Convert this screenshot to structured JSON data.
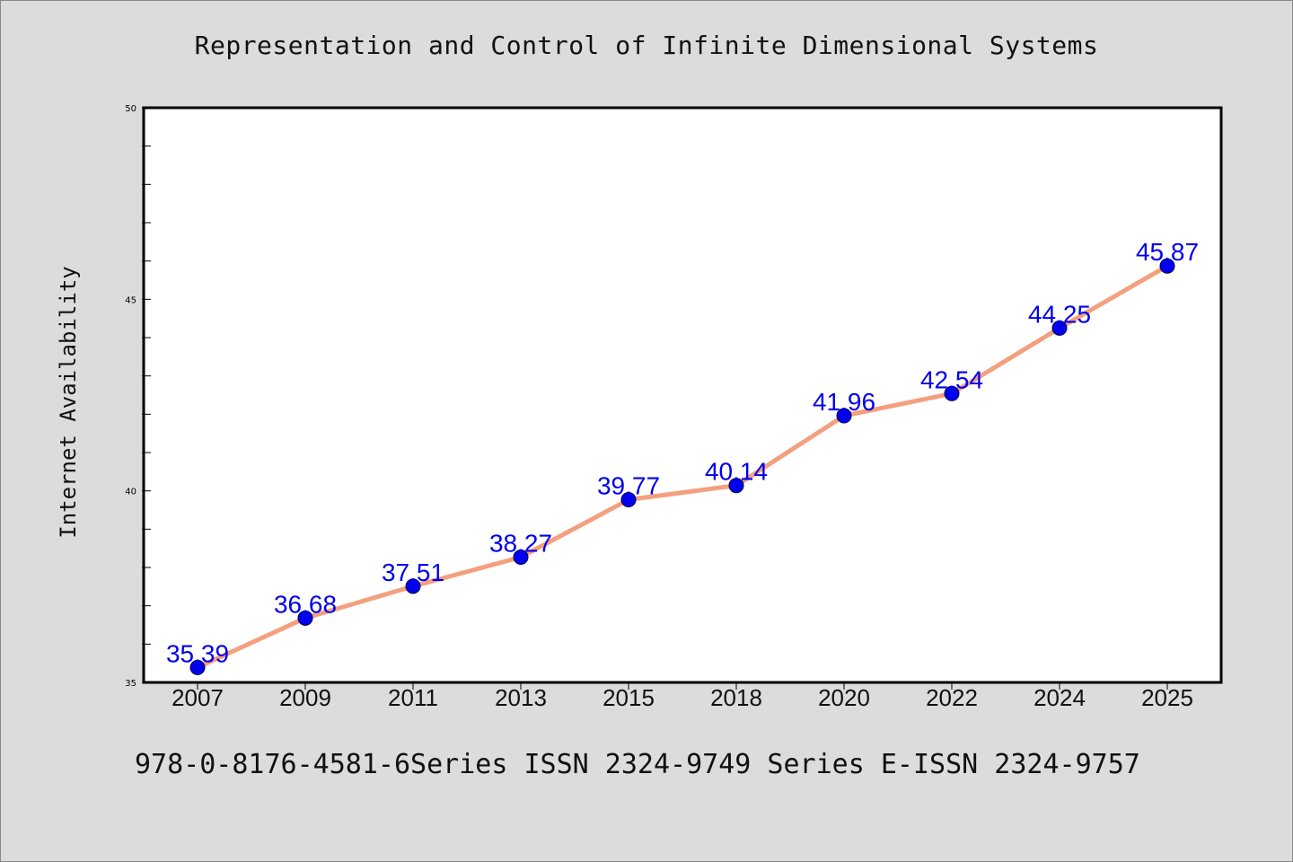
{
  "chart_data": {
    "type": "line",
    "title": "Representation and Control of Infinite Dimensional Systems",
    "footer": "978-0-8176-4581-6Series ISSN 2324-9749 Series E-ISSN 2324-9757",
    "xlabel": "",
    "ylabel": "Internet Availability",
    "categories": [
      "2007",
      "2009",
      "2011",
      "2013",
      "2015",
      "2018",
      "2020",
      "2022",
      "2024",
      "2025"
    ],
    "values": [
      35.39,
      36.68,
      37.51,
      38.27,
      39.77,
      40.14,
      41.96,
      42.54,
      44.25,
      45.87
    ],
    "data_labels": [
      "35.39",
      "36.68",
      "37.51",
      "38.27",
      "39.77",
      "40.14",
      "41.96",
      "42.54",
      "44.25",
      "45.87"
    ],
    "ylim": [
      35,
      50
    ],
    "yticks": [
      "35",
      "40",
      "45",
      "50"
    ],
    "grid": false,
    "colors": {
      "line": "#f4a07e",
      "marker": "#0000ee",
      "label": "#0000ee",
      "background": "#dcdcdc",
      "plot": "#ffffff"
    }
  }
}
